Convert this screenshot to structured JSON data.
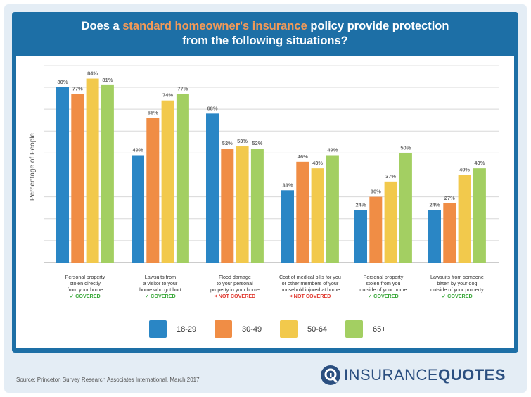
{
  "header": {
    "title_part1": "Does a ",
    "title_highlight": "standard homeowner's insurance",
    "title_part2": " policy provide protection",
    "title_line2": "from the following situations?"
  },
  "chart_data": {
    "type": "bar",
    "ylabel": "Percentage of People",
    "ylim": [
      0,
      100
    ],
    "grid": true,
    "legend_position": "bottom",
    "categories": [
      {
        "lines": [
          "Personal property",
          "stolen directly",
          "from your home"
        ],
        "status": "✓ COVERED",
        "covered": true
      },
      {
        "lines": [
          "Lawsuits from",
          "a visitor to your",
          "home who got hurt"
        ],
        "status": "✓ COVERED",
        "covered": true
      },
      {
        "lines": [
          "Flood damage",
          "to your personal",
          "property in your home"
        ],
        "status": "× NOT COVERED",
        "covered": false
      },
      {
        "lines": [
          "Cost of medical bills for you",
          "or other members of your",
          "household injured at home"
        ],
        "status": "× NOT COVERED",
        "covered": false
      },
      {
        "lines": [
          "Personal property",
          "stolen from you",
          "outside of your home"
        ],
        "status": "✓ COVERED",
        "covered": true
      },
      {
        "lines": [
          "Lawsuits from someone",
          "bitten by your dog",
          "outside of your property"
        ],
        "status": "✓ COVERED",
        "covered": true
      }
    ],
    "series": [
      {
        "name": "18-29",
        "color": "#2a86c5",
        "values": [
          80,
          49,
          68,
          33,
          24,
          24
        ]
      },
      {
        "name": "30-49",
        "color": "#f08d45",
        "values": [
          77,
          66,
          52,
          46,
          30,
          27
        ]
      },
      {
        "name": "50-64",
        "color": "#f2c94c",
        "values": [
          84,
          74,
          53,
          43,
          37,
          40
        ]
      },
      {
        "name": "65+",
        "color": "#a3cf62",
        "values": [
          81,
          77,
          52,
          49,
          50,
          43
        ]
      }
    ],
    "value_suffix": "%"
  },
  "footer": {
    "source": "Source: Princeton Survey Research Associates International, March 2017",
    "logo_part1": "INSURANCE",
    "logo_part2": "QUOTES"
  },
  "colors": {
    "frame": "#1d6fa6",
    "highlight": "#f39a58"
  }
}
